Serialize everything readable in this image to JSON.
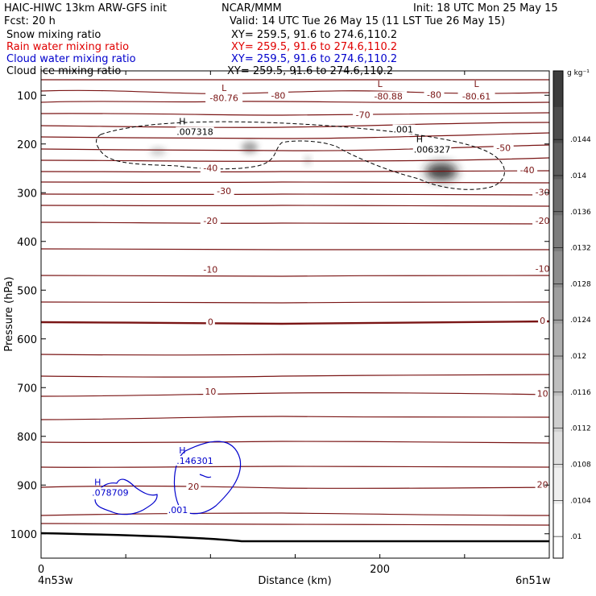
{
  "header": {
    "model_line": "HAIC-HIWC 13km ARW-GFS init",
    "org": "NCAR/MMM",
    "init": "Init: 18 UTC Mon 25 May 15",
    "fcst": "Fcst:    20 h",
    "valid": "Valid: 14 UTC Tue 26 May 15 (11 LST Tue 26 May 15)"
  },
  "legend": [
    {
      "name": "Snow mixing ratio",
      "xy": "XY=  259.5,  91.6  to  274.6,110.2",
      "color": "#000000"
    },
    {
      "name": "Rain water mixing ratio",
      "xy": "XY=  259.5,  91.6  to  274.6,110.2",
      "color": "#e00000"
    },
    {
      "name": "Cloud water mixing ratio",
      "xy": "XY=  259.5,  91.6  to  274.6,110.2",
      "color": "#0000cc"
    },
    {
      "name": "Cloud ice mixing ratio",
      "xy": "XY=  259.5,  91.6  to  274.6,110.2",
      "color": "#000000"
    }
  ],
  "colors": {
    "temperature": "#7a1515",
    "cloud_water": "#0000cc",
    "ice": "#000000",
    "terrain": "#000000"
  },
  "chart_data": {
    "type": "contour",
    "xlabel": "Distance (km)",
    "ylabel": "Pressure (hPa)",
    "xlim": [
      0,
      300
    ],
    "ylim": [
      1050,
      50
    ],
    "x_ticks": [
      0,
      200
    ],
    "y_ticks": [
      100,
      200,
      300,
      400,
      500,
      600,
      700,
      800,
      900,
      1000
    ],
    "x_endpoints": [
      "4n53w",
      "6n51w"
    ],
    "colorbar": {
      "unit": "g kg⁻¹",
      "ticks": [
        ".0144",
        ".014",
        ".0136",
        ".0132",
        ".0128",
        ".0124",
        ".012",
        ".0116",
        ".0112",
        ".0108",
        ".0104",
        ".01"
      ]
    },
    "temperature_labels": [
      {
        "text": "-80.76",
        "x": 108,
        "p": 110
      },
      {
        "text": "-80",
        "x": 140,
        "p": 105
      },
      {
        "text": "-80.88",
        "x": 205,
        "p": 107
      },
      {
        "text": "-80",
        "x": 232,
        "p": 104
      },
      {
        "text": "-80.61",
        "x": 257,
        "p": 107
      },
      {
        "text": "-70",
        "x": 190,
        "p": 145
      },
      {
        "text": "-50",
        "x": 273,
        "p": 213
      },
      {
        "text": "-40",
        "x": 100,
        "p": 254
      },
      {
        "text": "-40",
        "x": 287,
        "p": 258
      },
      {
        "text": "-30",
        "x": 108,
        "p": 301
      },
      {
        "text": "-30",
        "x": 296,
        "p": 304
      },
      {
        "text": "-20",
        "x": 100,
        "p": 362
      },
      {
        "text": "-20",
        "x": 296,
        "p": 362
      },
      {
        "text": "-10",
        "x": 100,
        "p": 462
      },
      {
        "text": "-10",
        "x": 296,
        "p": 461
      },
      {
        "text": "0",
        "x": 100,
        "p": 570
      },
      {
        "text": "0",
        "x": 296,
        "p": 567
      },
      {
        "text": "10",
        "x": 100,
        "p": 713
      },
      {
        "text": "10",
        "x": 296,
        "p": 717
      },
      {
        "text": "20",
        "x": 90,
        "p": 908
      },
      {
        "text": "20",
        "x": 296,
        "p": 904
      }
    ],
    "extrema": [
      {
        "symbol": "L",
        "x": 108,
        "p": 91
      },
      {
        "symbol": "L",
        "x": 200,
        "p": 83
      },
      {
        "symbol": "L",
        "x": 257,
        "p": 83
      }
    ],
    "ice_labels": [
      {
        "symbol": "H",
        "value": ".007318",
        "x": 90,
        "p": 180
      },
      {
        "symbol": "H",
        "value": ".006327",
        "x": 230,
        "p": 216
      },
      {
        "symbol": "",
        "value": ".001",
        "x": 218,
        "p": 175
      }
    ],
    "cloud_water_labels": [
      {
        "symbol": "H",
        "value": ".146301",
        "x": 90,
        "p": 855
      },
      {
        "symbol": "H",
        "value": ".078709",
        "x": 40,
        "p": 920
      },
      {
        "symbol": "",
        "value": ".001",
        "x": 85,
        "p": 956
      }
    ]
  }
}
